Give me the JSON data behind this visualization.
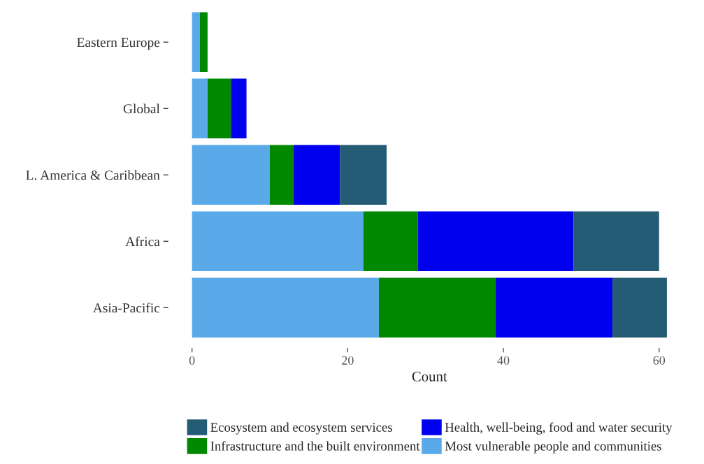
{
  "chart_data": {
    "type": "bar",
    "orientation": "horizontal",
    "stacked": true,
    "categories": [
      "Eastern Europe",
      "Global",
      "L. America & Caribbean",
      "Africa",
      "Asia-Pacific"
    ],
    "series": [
      {
        "name": "Most vulnerable people and communities",
        "color": "#5aaaea",
        "values": [
          1,
          2,
          10,
          22,
          24
        ]
      },
      {
        "name": "Infrastructure and the built environment",
        "color": "#008800",
        "values": [
          1,
          3,
          3,
          7,
          15
        ]
      },
      {
        "name": "Health, well-being, food and water security",
        "color": "#0000ee",
        "values": [
          0,
          2,
          6,
          20,
          15
        ]
      },
      {
        "name": "Ecosystem and ecosystem services",
        "color": "#245b75",
        "values": [
          0,
          0,
          6,
          11,
          7
        ]
      }
    ],
    "xlabel": "Count",
    "xlim": [
      -3.05,
      64.05
    ],
    "xticks": [
      0,
      20,
      40,
      60
    ],
    "grid": false,
    "legend": "bottom"
  }
}
